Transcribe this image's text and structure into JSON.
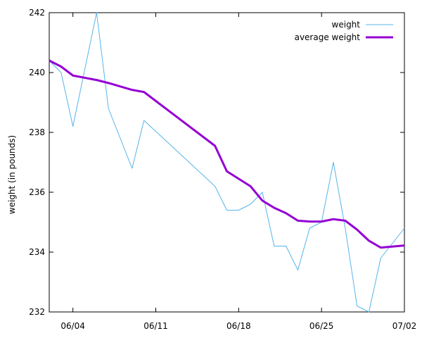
{
  "chart_data": {
    "type": "line",
    "title": "",
    "xlabel": "",
    "ylabel": "weight (in pounds)",
    "x_type": "date",
    "xlim": [
      "2025-06-02",
      "2025-07-02"
    ],
    "ylim": [
      232,
      242
    ],
    "x_ticks": [
      {
        "date": "2025-06-04",
        "label": "06/04"
      },
      {
        "date": "2025-06-11",
        "label": "06/11"
      },
      {
        "date": "2025-06-18",
        "label": "06/18"
      },
      {
        "date": "2025-06-25",
        "label": "06/25"
      },
      {
        "date": "2025-07-02",
        "label": "07/02"
      }
    ],
    "y_ticks": [
      232,
      234,
      236,
      238,
      240,
      242
    ],
    "grid": false,
    "legend_position": "top-right",
    "series": [
      {
        "name": "weight",
        "color": "#56b4e9",
        "line_width": 1,
        "x": [
          "2025-06-02",
          "2025-06-03",
          "2025-06-04",
          "2025-06-06",
          "2025-06-07",
          "2025-06-09",
          "2025-06-10",
          "2025-06-16",
          "2025-06-17",
          "2025-06-18",
          "2025-06-19",
          "2025-06-20",
          "2025-06-21",
          "2025-06-22",
          "2025-06-23",
          "2025-06-24",
          "2025-06-25",
          "2025-06-26",
          "2025-06-27",
          "2025-06-28",
          "2025-06-29",
          "2025-06-30",
          "2025-07-02"
        ],
        "y": [
          240.4,
          240.0,
          238.2,
          242.0,
          238.8,
          236.8,
          238.4,
          236.2,
          235.4,
          235.4,
          235.6,
          236.0,
          234.2,
          234.2,
          233.4,
          234.8,
          235.0,
          237.0,
          234.8,
          232.2,
          232.0,
          233.8,
          234.8
        ]
      },
      {
        "name": "average weight",
        "color": "#9400d3",
        "line_width": 3,
        "x": [
          "2025-06-02",
          "2025-06-03",
          "2025-06-04",
          "2025-06-06",
          "2025-06-07",
          "2025-06-09",
          "2025-06-10",
          "2025-06-16",
          "2025-06-17",
          "2025-06-18",
          "2025-06-19",
          "2025-06-20",
          "2025-06-21",
          "2025-06-22",
          "2025-06-23",
          "2025-06-24",
          "2025-06-25",
          "2025-06-26",
          "2025-06-27",
          "2025-06-28",
          "2025-06-29",
          "2025-06-30",
          "2025-07-02"
        ],
        "y": [
          240.4,
          240.2,
          239.9,
          239.75,
          239.65,
          239.42,
          239.35,
          237.55,
          236.7,
          236.45,
          236.2,
          235.72,
          235.48,
          235.3,
          235.05,
          235.02,
          235.02,
          235.1,
          235.05,
          234.75,
          234.38,
          234.15,
          234.22
        ]
      }
    ]
  }
}
